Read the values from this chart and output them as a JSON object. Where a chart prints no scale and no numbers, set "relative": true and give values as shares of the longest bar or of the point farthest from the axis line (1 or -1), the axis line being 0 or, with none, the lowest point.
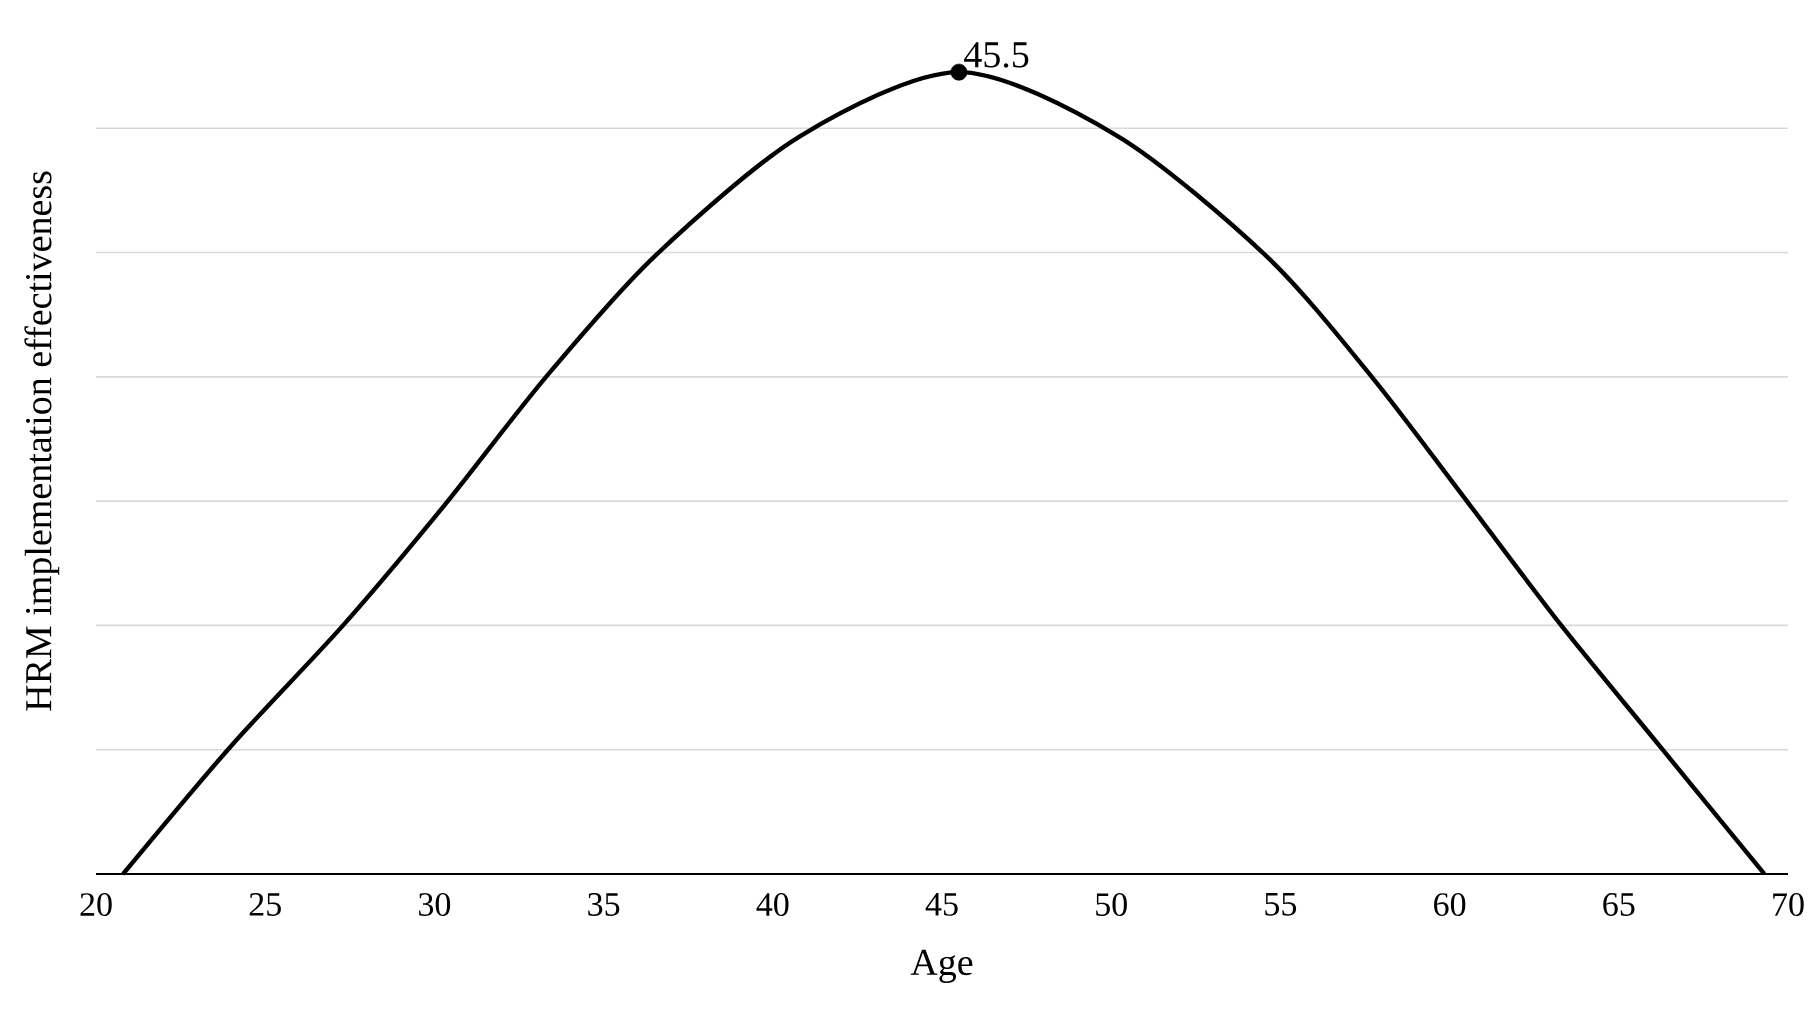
{
  "chart_data": {
    "type": "line",
    "xlabel": "Age",
    "ylabel": "HRM implementation effectiveness",
    "relative": true,
    "grid": "y",
    "xlim": [
      20,
      70
    ],
    "xticks": [
      20,
      25,
      30,
      35,
      40,
      45,
      50,
      55,
      60,
      65,
      70
    ],
    "annotations": [
      {
        "text": "45.5",
        "x": 45.5,
        "y": 1
      }
    ],
    "series": [
      {
        "color": "#000000",
        "marker": "none",
        "x": [
          20.8,
          24.0,
          27.3,
          30.3,
          33.3,
          36.5,
          40.8,
          45.5,
          50.2,
          54.6,
          57.7,
          60.6,
          63.3,
          66.2,
          69.3
        ],
        "values": [
          0,
          0.16,
          0.31,
          0.46,
          0.62,
          0.77,
          0.92,
          1,
          0.92,
          0.77,
          0.62,
          0.46,
          0.31,
          0.16,
          0
        ]
      },
      {
        "type": "scatter",
        "color": "#000000",
        "marker": "circle",
        "x": [
          45.5
        ],
        "values": [
          1
        ]
      }
    ]
  }
}
